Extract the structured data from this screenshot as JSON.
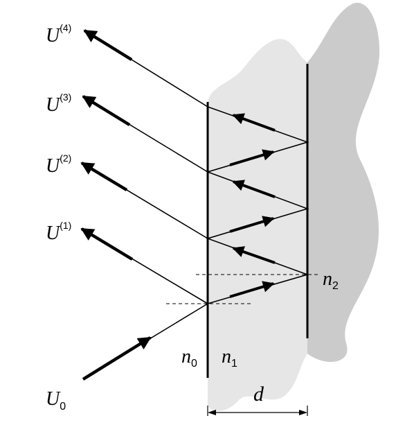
{
  "colors": {
    "slab_fill": "#e6e6e6",
    "substrate_fill": "#cbcbcb",
    "ink": "#000000"
  },
  "labels": {
    "reflected": [
      {
        "sym": "U",
        "sup": "(1)"
      },
      {
        "sym": "U",
        "sup": "(2)"
      },
      {
        "sym": "U",
        "sup": "(3)"
      },
      {
        "sym": "U",
        "sup": "(4)"
      }
    ],
    "incident": {
      "sym": "U",
      "sub": "0"
    },
    "n0": {
      "sym": "n",
      "sub": "0"
    },
    "n1": {
      "sym": "n",
      "sub": "1"
    },
    "n2": {
      "sym": "n",
      "sub": "2"
    },
    "thickness": "d"
  }
}
